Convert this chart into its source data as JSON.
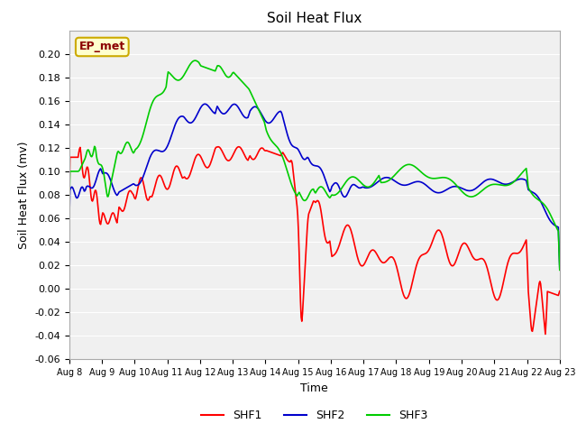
{
  "title": "Soil Heat Flux",
  "xlabel": "Time",
  "ylabel": "Soil Heat Flux (mv)",
  "ylim": [
    -0.06,
    0.22
  ],
  "yticks": [
    -0.06,
    -0.04,
    -0.02,
    0.0,
    0.02,
    0.04,
    0.06,
    0.08,
    0.1,
    0.12,
    0.14,
    0.16,
    0.18,
    0.2
  ],
  "xtick_labels": [
    "Aug 8",
    "Aug 9",
    "Aug 10",
    "Aug 11",
    "Aug 12",
    "Aug 13",
    "Aug 14",
    "Aug 15",
    "Aug 16",
    "Aug 17",
    "Aug 18",
    "Aug 19",
    "Aug 20",
    "Aug 21",
    "Aug 22",
    "Aug 23"
  ],
  "annotation_text": "EP_met",
  "colors": {
    "SHF1": "#ff0000",
    "SHF2": "#0000cc",
    "SHF3": "#00cc00"
  },
  "fig_facecolor": "#ffffff",
  "plot_bg_color": "#f0f0f0",
  "grid_color": "#ffffff",
  "legend_labels": [
    "SHF1",
    "SHF2",
    "SHF3"
  ]
}
